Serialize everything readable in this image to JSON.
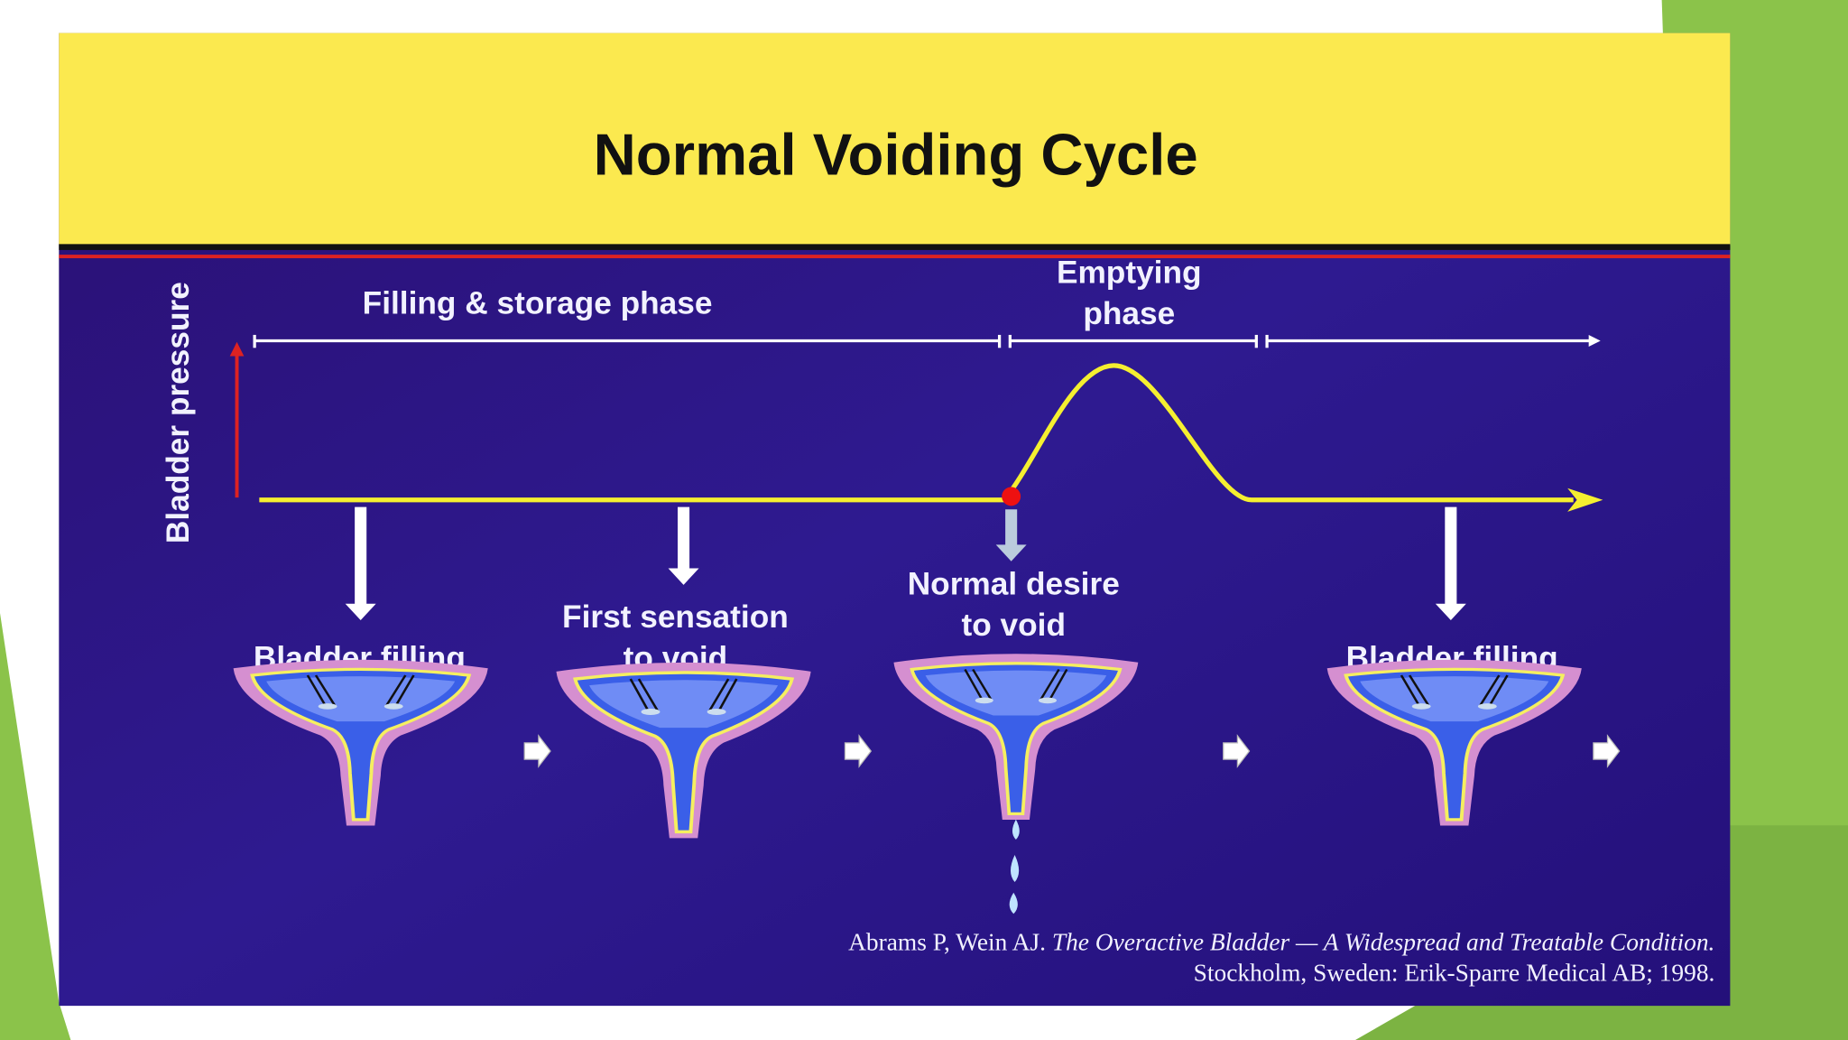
{
  "title": "Normal Voiding Cycle",
  "y_axis_label": "Bladder pressure",
  "phases": {
    "filling": "Filling  & storage phase",
    "emptying": [
      "Emptying",
      "phase"
    ]
  },
  "stages": [
    {
      "lines": [
        "Bladder filling"
      ]
    },
    {
      "lines": [
        "First sensation",
        "to void"
      ]
    },
    {
      "lines": [
        "Normal desire",
        "to void"
      ]
    },
    {
      "lines": [
        "Bladder filling"
      ]
    }
  ],
  "citation": {
    "authors": "Abrams P, Wein AJ.",
    "work": "The Overactive Bladder — A Widespread and Treatable Condition.",
    "publisher": "Stockholm, Sweden: Erik-Sparre Medical AB; 1998."
  }
}
